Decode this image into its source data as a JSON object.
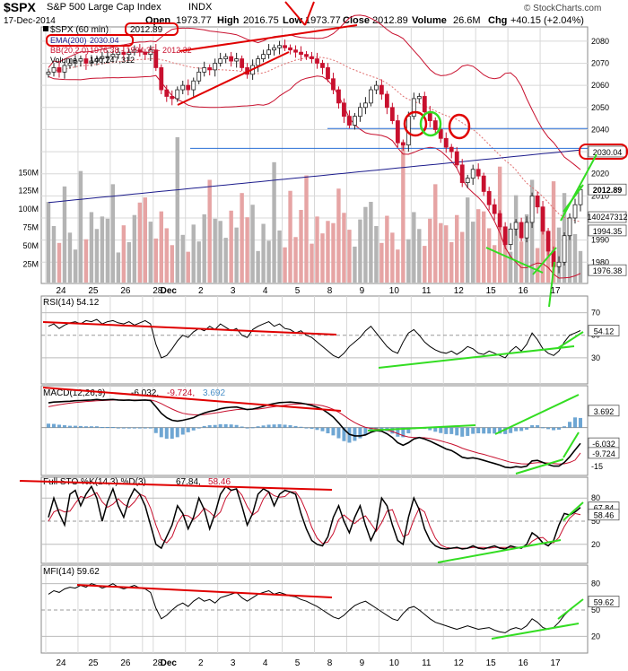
{
  "header": {
    "symbol": "$SPX",
    "name": "S&P 500 Large Cap Index",
    "exchange": "INDX",
    "date": "17-Dec-2014",
    "open_label": "Open",
    "open": "1973.77",
    "high_label": "High",
    "high": "2016.75",
    "low_label": "Low",
    "low": "1973.77",
    "close_label": "Close",
    "close": "2012.89",
    "volume_label": "Volume",
    "volume": "26.6M",
    "chg_label": "Chg",
    "chg": "+40.15 (+2.04%)",
    "logo": "© StockCharts.com"
  },
  "colors": {
    "up": "#222222",
    "down": "#c8102e",
    "ema": "#1c1c8c",
    "bb": "#c8102e",
    "bb_mid": "#e07070",
    "vol_up": "#b4b4b4",
    "vol_down": "#e6a4a4",
    "annot_red": "#e00000",
    "annot_green": "#33dd22",
    "hline": "#2a6fd6",
    "macd_hist": "#4a90c8",
    "grid": "#d8d8d8"
  },
  "chart_data": [
    {
      "type": "candlestick",
      "panel": "price",
      "title": "$SPX (60 min)",
      "legend": [
        {
          "name": "$SPX (60 min)",
          "value": "2012.89"
        },
        {
          "name": "EMA(200)",
          "value": "2030.04"
        },
        {
          "name": "BB(20,2.0)",
          "value": "1976.38 - 1994.35 - 2012.32"
        },
        {
          "name": "Volume",
          "value": "140,247,312"
        }
      ],
      "ylim": [
        1972,
        2084
      ],
      "yticks": [
        1980,
        1990,
        2000,
        2010,
        2020,
        2030,
        2040,
        2050,
        2060,
        2070,
        2080
      ],
      "ytick_labels": [
        "1980",
        "1990",
        "2000",
        "2010",
        "2020",
        "2030",
        "2040",
        "2050",
        "2060",
        "2070",
        "2080"
      ],
      "price_tags": [
        {
          "label": "2030.04",
          "value": 2030.04,
          "circled": true
        },
        {
          "label": "2012.89",
          "value": 2012.89,
          "bold": true
        },
        {
          "label": "1994.35",
          "value": 1994.35
        },
        {
          "label": "1976.38",
          "value": 1976.38
        }
      ],
      "volume_tag": "140247312",
      "volume_axis_labels": [
        "150M",
        "125M",
        "100M",
        "75M",
        "50M",
        "25M"
      ],
      "volume_ticks_m": [
        150,
        125,
        100,
        75,
        50,
        25
      ],
      "volume_max_m": 440,
      "x_labels": [
        "24",
        "25",
        "26",
        "28",
        "Dec",
        "2",
        "3",
        "4",
        "5",
        "8",
        "9",
        "10",
        "11",
        "12",
        "15",
        "16",
        "17"
      ],
      "close_path": [
        {
          "t": 0,
          "c": 2066
        },
        {
          "t": 1,
          "c": 2068
        },
        {
          "t": 2,
          "c": 2066
        },
        {
          "t": 3,
          "c": 2069
        },
        {
          "t": 4,
          "c": 2070
        },
        {
          "t": 5,
          "c": 2071
        },
        {
          "t": 6,
          "c": 2072
        },
        {
          "t": 7,
          "c": 2070
        },
        {
          "t": 8,
          "c": 2071
        },
        {
          "t": 9,
          "c": 2072
        },
        {
          "t": 10,
          "c": 2073
        },
        {
          "t": 11,
          "c": 2073
        },
        {
          "t": 12,
          "c": 2074
        },
        {
          "t": 13,
          "c": 2075
        },
        {
          "t": 14,
          "c": 2074
        },
        {
          "t": 15,
          "c": 2075
        },
        {
          "t": 16,
          "c": 2076
        },
        {
          "t": 17,
          "c": 2075
        },
        {
          "t": 18,
          "c": 2074
        },
        {
          "t": 19,
          "c": 2076
        },
        {
          "t": 20,
          "c": 2068
        },
        {
          "t": 21,
          "c": 2058
        },
        {
          "t": 22,
          "c": 2055
        },
        {
          "t": 23,
          "c": 2054
        },
        {
          "t": 24,
          "c": 2058
        },
        {
          "t": 25,
          "c": 2060
        },
        {
          "t": 26,
          "c": 2058
        },
        {
          "t": 27,
          "c": 2062
        },
        {
          "t": 28,
          "c": 2066
        },
        {
          "t": 29,
          "c": 2068
        },
        {
          "t": 30,
          "c": 2067
        },
        {
          "t": 31,
          "c": 2070
        },
        {
          "t": 32,
          "c": 2072
        },
        {
          "t": 33,
          "c": 2073
        },
        {
          "t": 34,
          "c": 2071
        },
        {
          "t": 35,
          "c": 2072
        },
        {
          "t": 36,
          "c": 2068
        },
        {
          "t": 37,
          "c": 2065
        },
        {
          "t": 38,
          "c": 2069
        },
        {
          "t": 39,
          "c": 2072
        },
        {
          "t": 40,
          "c": 2074
        },
        {
          "t": 41,
          "c": 2076
        },
        {
          "t": 42,
          "c": 2077
        },
        {
          "t": 43,
          "c": 2078
        },
        {
          "t": 44,
          "c": 2077
        },
        {
          "t": 45,
          "c": 2076
        },
        {
          "t": 46,
          "c": 2075
        },
        {
          "t": 47,
          "c": 2074
        },
        {
          "t": 48,
          "c": 2073
        },
        {
          "t": 49,
          "c": 2072
        },
        {
          "t": 50,
          "c": 2070
        },
        {
          "t": 51,
          "c": 2068
        },
        {
          "t": 52,
          "c": 2063
        },
        {
          "t": 53,
          "c": 2058
        },
        {
          "t": 54,
          "c": 2052
        },
        {
          "t": 55,
          "c": 2046
        },
        {
          "t": 56,
          "c": 2042
        },
        {
          "t": 57,
          "c": 2046
        },
        {
          "t": 58,
          "c": 2050
        },
        {
          "t": 59,
          "c": 2052
        },
        {
          "t": 60,
          "c": 2058
        },
        {
          "t": 61,
          "c": 2060
        },
        {
          "t": 62,
          "c": 2056
        },
        {
          "t": 63,
          "c": 2050
        },
        {
          "t": 64,
          "c": 2044
        },
        {
          "t": 65,
          "c": 2034
        },
        {
          "t": 66,
          "c": 2033
        },
        {
          "t": 67,
          "c": 2046
        },
        {
          "t": 68,
          "c": 2054
        },
        {
          "t": 69,
          "c": 2055
        },
        {
          "t": 70,
          "c": 2048
        },
        {
          "t": 71,
          "c": 2044
        },
        {
          "t": 72,
          "c": 2040
        },
        {
          "t": 73,
          "c": 2036
        },
        {
          "t": 74,
          "c": 2032
        },
        {
          "t": 75,
          "c": 2030
        },
        {
          "t": 76,
          "c": 2024
        },
        {
          "t": 77,
          "c": 2016
        },
        {
          "t": 78,
          "c": 2018
        },
        {
          "t": 79,
          "c": 2022
        },
        {
          "t": 80,
          "c": 2019
        },
        {
          "t": 81,
          "c": 2012
        },
        {
          "t": 82,
          "c": 2006
        },
        {
          "t": 83,
          "c": 2002
        },
        {
          "t": 84,
          "c": 1996
        },
        {
          "t": 85,
          "c": 1988
        },
        {
          "t": 86,
          "c": 1995
        },
        {
          "t": 87,
          "c": 1998
        },
        {
          "t": 88,
          "c": 1991
        },
        {
          "t": 89,
          "c": 1998
        },
        {
          "t": 90,
          "c": 2010
        },
        {
          "t": 91,
          "c": 2005
        },
        {
          "t": 92,
          "c": 1994
        },
        {
          "t": 93,
          "c": 1985
        },
        {
          "t": 94,
          "c": 1978
        },
        {
          "t": 95,
          "c": 1980
        },
        {
          "t": 96,
          "c": 1992
        },
        {
          "t": 97,
          "c": 2000
        },
        {
          "t": 98,
          "c": 2006
        },
        {
          "t": 99,
          "c": 2012.89
        }
      ]
    },
    {
      "type": "line",
      "panel": "rsi",
      "legend": "RSI(14) 54.12",
      "ylim": [
        10,
        80
      ],
      "yticks": [
        30,
        50,
        70
      ],
      "ytick_labels": [
        "30",
        "50",
        "70"
      ],
      "tag": "54.12",
      "values": [
        58,
        60,
        56,
        59,
        61,
        62,
        60,
        63,
        62,
        64,
        60,
        62,
        63,
        61,
        60,
        62,
        59,
        61,
        63,
        60,
        42,
        30,
        32,
        38,
        45,
        50,
        48,
        53,
        56,
        54,
        58,
        55,
        60,
        57,
        54,
        56,
        50,
        48,
        55,
        58,
        60,
        62,
        58,
        60,
        56,
        55,
        52,
        54,
        50,
        48,
        44,
        40,
        36,
        32,
        30,
        34,
        40,
        44,
        48,
        54,
        58,
        52,
        46,
        40,
        36,
        34,
        44,
        52,
        55,
        50,
        44,
        40,
        37,
        35,
        34,
        36,
        33,
        36,
        40,
        38,
        34,
        33,
        36,
        34,
        32,
        30,
        36,
        40,
        36,
        42,
        52,
        46,
        38,
        34,
        32,
        36,
        44,
        50,
        52,
        54.12
      ]
    },
    {
      "type": "line",
      "panel": "macd",
      "legend": "MACD(12,26,9) -6.032, -9.724, 3.692",
      "legend_parts": [
        "MACD(12,26,9)",
        "-6.032,",
        "-9.724,",
        "3.692"
      ],
      "ylim": [
        -17,
        14
      ],
      "yticks": [
        -15
      ],
      "ytick_labels": [
        "-15"
      ],
      "tags": [
        "3.692",
        "-6.032",
        "-9.724"
      ],
      "macd": [
        9.5,
        9.8,
        9.9,
        10,
        10.1,
        10.3,
        10.4,
        10.5,
        10.6,
        10.8,
        10.6,
        10.7,
        10.8,
        10.6,
        10.5,
        10.6,
        10.4,
        10.5,
        10.6,
        10.4,
        8,
        5.5,
        3.8,
        2.8,
        2.5,
        2.8,
        3.3,
        3.8,
        4.8,
        5.6,
        6.2,
        6.6,
        7.2,
        7.6,
        7.8,
        7.9,
        7.4,
        6.9,
        7.1,
        7.6,
        8.2,
        8.8,
        9.2,
        9.6,
        9.7,
        9.8,
        9.6,
        9.4,
        9,
        8.5,
        7.8,
        7,
        5.6,
        4,
        1.8,
        -0.6,
        -2.6,
        -3.2,
        -3.2,
        -2.8,
        -1.8,
        -1.2,
        -1.4,
        -2.4,
        -3.8,
        -5.8,
        -6.8,
        -5.8,
        -4.4,
        -3.8,
        -4.4,
        -5.2,
        -6.2,
        -7.2,
        -8.2,
        -8.8,
        -10,
        -11.4,
        -11.8,
        -11.6,
        -12,
        -12.6,
        -13.2,
        -13.8,
        -14.4,
        -15.2,
        -15.4,
        -15,
        -15.2,
        -14.8,
        -12.8,
        -12.6,
        -13.4,
        -14.2,
        -14.8,
        -14.8,
        -13.4,
        -11.2,
        -8.6,
        -6.032
      ],
      "signal": [
        8,
        8.4,
        8.8,
        9.1,
        9.4,
        9.6,
        9.8,
        10,
        10.1,
        10.3,
        10.4,
        10.5,
        10.6,
        10.6,
        10.6,
        10.6,
        10.6,
        10.6,
        10.6,
        10.6,
        10.1,
        9.2,
        8.1,
        7.1,
        6.2,
        5.5,
        5.1,
        4.9,
        4.9,
        5.0,
        5.3,
        5.6,
        5.9,
        6.3,
        6.6,
        6.9,
        7.0,
        7.0,
        7.0,
        7.1,
        7.4,
        7.7,
        8.0,
        8.3,
        8.6,
        8.9,
        9.0,
        9.1,
        9.1,
        9.0,
        8.7,
        8.4,
        7.8,
        7.0,
        5.9,
        4.6,
        3.2,
        1.9,
        0.9,
        0.1,
        -0.3,
        -0.5,
        -0.7,
        -1.0,
        -1.5,
        -2.3,
        -3.1,
        -3.6,
        -3.8,
        -3.8,
        -3.9,
        -4.2,
        -4.6,
        -5.1,
        -5.7,
        -6.3,
        -7.0,
        -7.9,
        -8.6,
        -9.2,
        -9.8,
        -10.3,
        -10.9,
        -11.5,
        -12.1,
        -12.7,
        -13.3,
        -13.6,
        -13.9,
        -14.0,
        -13.7,
        -13.5,
        -13.5,
        -13.6,
        -13.8,
        -14.0,
        -13.9,
        -13.4,
        -12.5,
        -9.724
      ]
    },
    {
      "type": "line",
      "panel": "sto",
      "legend": "Full STO %K(14,3) %D(3) 67.84, 58.46",
      "legend_parts": [
        "Full STO %K(14,3) %D(3)",
        "67.84,",
        "58.46"
      ],
      "ylim": [
        0,
        100
      ],
      "yticks": [
        20,
        50,
        80
      ],
      "ytick_labels": [
        "20",
        "50",
        "80"
      ],
      "tags": [
        "67.84",
        "58.46"
      ],
      "k": [
        55,
        80,
        60,
        45,
        85,
        90,
        70,
        85,
        95,
        80,
        50,
        75,
        92,
        70,
        55,
        78,
        92,
        85,
        70,
        45,
        20,
        15,
        30,
        45,
        70,
        60,
        40,
        55,
        80,
        65,
        40,
        60,
        85,
        95,
        90,
        92,
        70,
        45,
        60,
        85,
        92,
        88,
        70,
        85,
        90,
        88,
        85,
        60,
        40,
        25,
        20,
        18,
        30,
        55,
        70,
        50,
        35,
        55,
        70,
        45,
        25,
        40,
        80,
        70,
        45,
        25,
        20,
        55,
        80,
        65,
        40,
        25,
        18,
        15,
        14,
        15,
        16,
        14,
        15,
        18,
        15,
        14,
        16,
        18,
        15,
        14,
        18,
        16,
        15,
        20,
        35,
        30,
        22,
        18,
        25,
        45,
        60,
        58,
        62,
        67.84
      ],
      "d": [
        50,
        62,
        65,
        62,
        63,
        73,
        82,
        80,
        83,
        87,
        75,
        68,
        72,
        79,
        72,
        68,
        75,
        85,
        82,
        67,
        45,
        27,
        22,
        30,
        48,
        58,
        57,
        52,
        58,
        67,
        62,
        55,
        62,
        80,
        90,
        92,
        84,
        69,
        58,
        63,
        79,
        88,
        83,
        81,
        82,
        88,
        88,
        78,
        62,
        42,
        28,
        21,
        23,
        34,
        52,
        58,
        52,
        47,
        53,
        57,
        47,
        37,
        48,
        63,
        65,
        47,
        30,
        33,
        52,
        67,
        62,
        43,
        28,
        19,
        16,
        15,
        15,
        15,
        15,
        16,
        16,
        16,
        15,
        16,
        16,
        16,
        16,
        16,
        16,
        17,
        24,
        28,
        29,
        23,
        22,
        29,
        43,
        54,
        60,
        58.46
      ]
    },
    {
      "type": "line",
      "panel": "mfi",
      "legend": "MFI(14) 59.62",
      "ylim": [
        5,
        95
      ],
      "yticks": [
        20,
        50,
        80
      ],
      "ytick_labels": [
        "20",
        "50",
        "80"
      ],
      "tag": "59.62",
      "values": [
        68,
        72,
        70,
        74,
        76,
        75,
        78,
        76,
        80,
        78,
        75,
        77,
        80,
        76,
        74,
        76,
        78,
        75,
        74,
        70,
        52,
        40,
        44,
        50,
        55,
        58,
        54,
        60,
        64,
        60,
        62,
        58,
        64,
        66,
        68,
        70,
        64,
        60,
        64,
        68,
        70,
        72,
        68,
        70,
        68,
        66,
        65,
        62,
        60,
        57,
        54,
        50,
        46,
        42,
        40,
        44,
        50,
        55,
        58,
        60,
        56,
        52,
        48,
        44,
        40,
        38,
        46,
        52,
        54,
        50,
        45,
        40,
        36,
        34,
        32,
        30,
        28,
        30,
        32,
        30,
        28,
        29,
        30,
        27,
        25,
        24,
        28,
        30,
        28,
        32,
        40,
        36,
        30,
        28,
        30,
        36,
        44,
        50,
        55,
        59.62
      ]
    }
  ],
  "x_axis_labels": [
    "24",
    "25",
    "26",
    "28",
    "Dec",
    "2",
    "3",
    "4",
    "5",
    "8",
    "9",
    "10",
    "11",
    "12",
    "15",
    "16",
    "17"
  ]
}
